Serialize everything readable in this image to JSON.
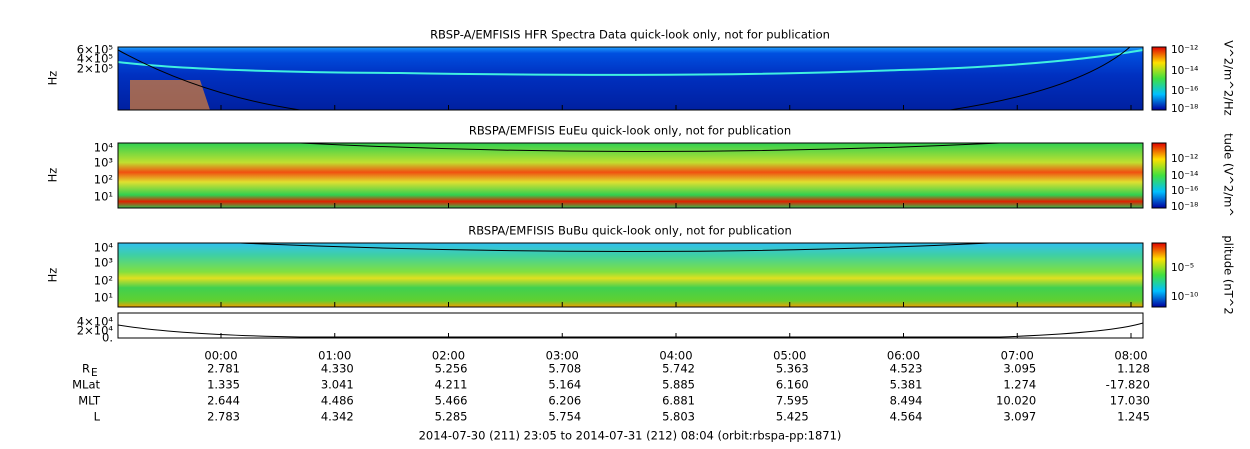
{
  "panels": [
    {
      "title": "RBSP-A/EMFISIS  HFR Spectra Data quick-look only, not for publication",
      "ylabel": "Hz",
      "yticks": [
        "6×10⁵",
        "4×10⁵",
        "2×10⁵"
      ],
      "colorbar_label": "V^2/m^2/Hz",
      "colorbar_ticks": [
        "10⁻¹²",
        "10⁻¹⁴",
        "10⁻¹⁶",
        "10⁻¹⁸"
      ]
    },
    {
      "title": "RBSPA/EMFISIS  EuEu quick-look only, not for publication",
      "ylabel": "Hz",
      "yticks": [
        "10⁴",
        "10³",
        "10²",
        "10¹"
      ],
      "colorbar_label": "tude (V^2/m^",
      "colorbar_ticks": [
        "10⁻¹²",
        "10⁻¹⁴",
        "10⁻¹⁶",
        "10⁻¹⁸"
      ]
    },
    {
      "title": "RBSPA/EMFISIS  BuBu quick-look only, not for publication",
      "ylabel": "Hz",
      "yticks": [
        "10⁴",
        "10³",
        "10²",
        "10¹"
      ],
      "colorbar_label": "plitude (nT^2",
      "colorbar_ticks": [
        "10⁻⁵",
        "10⁻¹⁰"
      ]
    },
    {
      "yticks": [
        "4×10⁴",
        "2×10⁴",
        "0."
      ]
    }
  ],
  "time_labels": [
    "00:00",
    "01:00",
    "02:00",
    "03:00",
    "04:00",
    "05:00",
    "06:00",
    "07:00",
    "08:00"
  ],
  "ephemeris": [
    {
      "label": "R",
      "sub": "E",
      "values": [
        "2.781",
        "4.330",
        "5.256",
        "5.708",
        "5.742",
        "5.363",
        "4.523",
        "3.095",
        "1.128"
      ]
    },
    {
      "label": "MLat",
      "values": [
        "1.335",
        "3.041",
        "4.211",
        "5.164",
        "5.885",
        "6.160",
        "5.381",
        "1.274",
        "-17.820"
      ]
    },
    {
      "label": "MLT",
      "values": [
        "2.644",
        "4.486",
        "5.466",
        "6.206",
        "6.881",
        "7.595",
        "8.494",
        "10.020",
        "17.030"
      ]
    },
    {
      "label": "L",
      "values": [
        "2.783",
        "4.342",
        "5.285",
        "5.754",
        "5.803",
        "5.425",
        "4.564",
        "3.097",
        "1.245"
      ]
    }
  ],
  "footer": "2014-07-30 (211) 23:05 to 2014-07-31 (212) 08:04 (orbit:rbspa-pp:1871)"
}
